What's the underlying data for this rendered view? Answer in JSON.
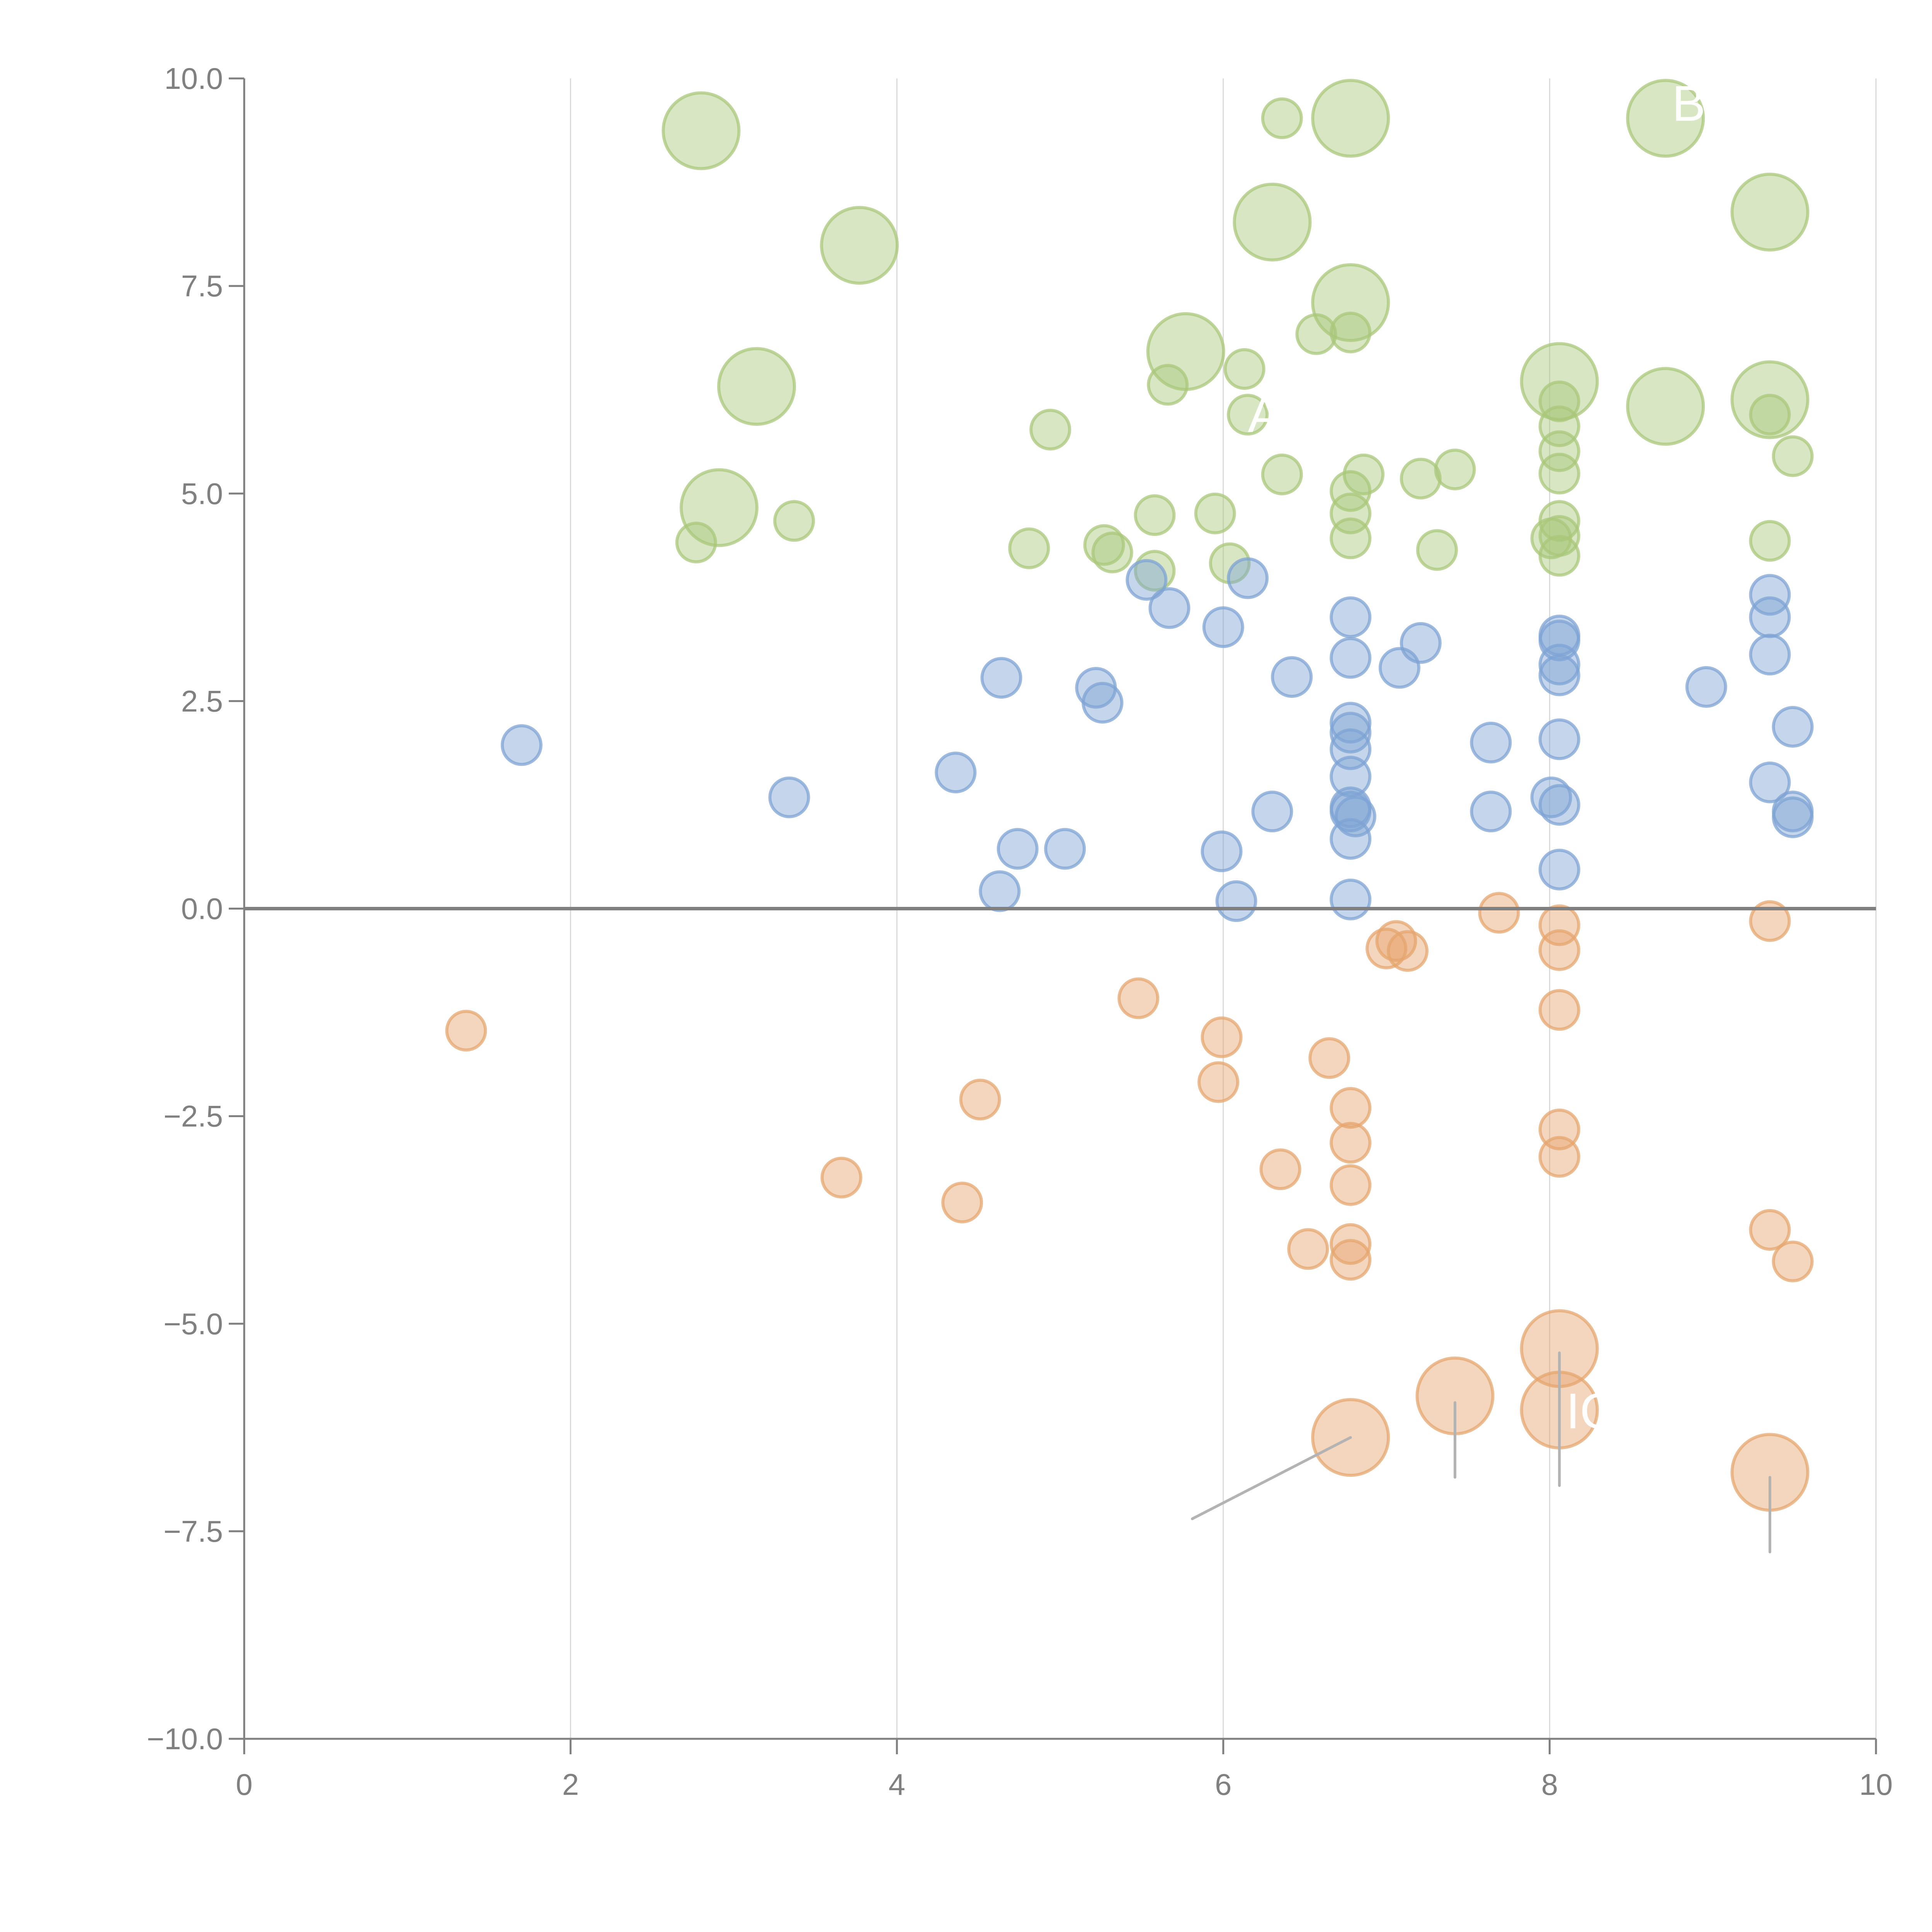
{
  "chart_data": {
    "type": "scatter",
    "subtype": "bubble",
    "title": "",
    "xlabel": "",
    "ylabel": "",
    "xlim": [
      0,
      10
    ],
    "ylim": [
      -10,
      10
    ],
    "x_ticks": [
      "0",
      "2",
      "4",
      "6",
      "8",
      "10"
    ],
    "x_tick_values": [
      0,
      2,
      4,
      6,
      8,
      10
    ],
    "y_ticks": [
      "10.0",
      "7.5",
      "5.0",
      "2.5",
      "0.0",
      "−2.5",
      "−5.0",
      "−7.5",
      "−10.0"
    ],
    "y_tick_values": [
      10,
      7.5,
      5,
      2.5,
      0,
      -2.5,
      -5,
      -7.5,
      -10
    ],
    "grid": "vertical",
    "reference_line_y": 0,
    "legend": "none",
    "series": [
      {
        "name": "green",
        "color": "#a9c77a",
        "points": [
          {
            "x": 2.8,
            "y": 9.37,
            "size": "large"
          },
          {
            "x": 3.77,
            "y": 7.99,
            "size": "large"
          },
          {
            "x": 3.14,
            "y": 6.29,
            "size": "large"
          },
          {
            "x": 2.91,
            "y": 4.83,
            "size": "large"
          },
          {
            "x": 6.3,
            "y": 8.27,
            "size": "large"
          },
          {
            "x": 6.78,
            "y": 9.52,
            "size": "large"
          },
          {
            "x": 6.78,
            "y": 7.3,
            "size": "large"
          },
          {
            "x": 5.77,
            "y": 6.71,
            "size": "large"
          },
          {
            "x": 8.06,
            "y": 6.35,
            "size": "large"
          },
          {
            "x": 8.71,
            "y": 6.05,
            "size": "large"
          },
          {
            "x": 8.71,
            "y": 9.52,
            "size": "large"
          },
          {
            "x": 9.35,
            "y": 8.39,
            "size": "large"
          },
          {
            "x": 9.35,
            "y": 6.13,
            "size": "large"
          },
          {
            "x": 6.36,
            "y": 9.52,
            "size": "small"
          },
          {
            "x": 6.57,
            "y": 6.92,
            "size": "small"
          },
          {
            "x": 6.78,
            "y": 6.94,
            "size": "small"
          },
          {
            "x": 6.13,
            "y": 6.5,
            "size": "small"
          },
          {
            "x": 5.66,
            "y": 6.31,
            "size": "small"
          },
          {
            "x": 6.15,
            "y": 5.95,
            "size": "small"
          },
          {
            "x": 4.94,
            "y": 5.77,
            "size": "small"
          },
          {
            "x": 8.06,
            "y": 6.11,
            "size": "small"
          },
          {
            "x": 8.06,
            "y": 5.81,
            "size": "small"
          },
          {
            "x": 8.06,
            "y": 5.51,
            "size": "small"
          },
          {
            "x": 8.06,
            "y": 5.24,
            "size": "small"
          },
          {
            "x": 9.35,
            "y": 5.95,
            "size": "small"
          },
          {
            "x": 9.49,
            "y": 5.45,
            "size": "small"
          },
          {
            "x": 6.36,
            "y": 5.23,
            "size": "small"
          },
          {
            "x": 6.86,
            "y": 5.23,
            "size": "small"
          },
          {
            "x": 6.78,
            "y": 5.03,
            "size": "small"
          },
          {
            "x": 7.21,
            "y": 5.18,
            "size": "small"
          },
          {
            "x": 7.42,
            "y": 5.29,
            "size": "small"
          },
          {
            "x": 3.37,
            "y": 4.67,
            "size": "small"
          },
          {
            "x": 2.77,
            "y": 4.41,
            "size": "small"
          },
          {
            "x": 5.58,
            "y": 4.74,
            "size": "small"
          },
          {
            "x": 5.95,
            "y": 4.76,
            "size": "small"
          },
          {
            "x": 6.78,
            "y": 4.76,
            "size": "small"
          },
          {
            "x": 8.06,
            "y": 4.67,
            "size": "small"
          },
          {
            "x": 8.06,
            "y": 4.49,
            "size": "small"
          },
          {
            "x": 8.01,
            "y": 4.46,
            "size": "small"
          },
          {
            "x": 6.78,
            "y": 4.46,
            "size": "small"
          },
          {
            "x": 9.35,
            "y": 4.43,
            "size": "small"
          },
          {
            "x": 4.81,
            "y": 4.34,
            "size": "small"
          },
          {
            "x": 5.27,
            "y": 4.38,
            "size": "small"
          },
          {
            "x": 5.32,
            "y": 4.29,
            "size": "small"
          },
          {
            "x": 7.31,
            "y": 4.32,
            "size": "small"
          },
          {
            "x": 8.06,
            "y": 4.25,
            "size": "small"
          },
          {
            "x": 5.58,
            "y": 4.07,
            "size": "small"
          },
          {
            "x": 6.04,
            "y": 4.16,
            "size": "small"
          }
        ]
      },
      {
        "name": "blue",
        "color": "#7ea3d4",
        "points": [
          {
            "x": 1.7,
            "y": 1.97,
            "size": "small"
          },
          {
            "x": 3.34,
            "y": 1.34,
            "size": "small"
          },
          {
            "x": 4.36,
            "y": 1.64,
            "size": "small"
          },
          {
            "x": 4.64,
            "y": 2.78,
            "size": "small"
          },
          {
            "x": 4.74,
            "y": 0.72,
            "size": "small"
          },
          {
            "x": 5.03,
            "y": 0.72,
            "size": "small"
          },
          {
            "x": 4.63,
            "y": 0.21,
            "size": "small"
          },
          {
            "x": 5.22,
            "y": 2.66,
            "size": "small"
          },
          {
            "x": 5.26,
            "y": 2.48,
            "size": "small"
          },
          {
            "x": 5.53,
            "y": 3.96,
            "size": "small"
          },
          {
            "x": 5.67,
            "y": 3.62,
            "size": "small"
          },
          {
            "x": 6.0,
            "y": 3.39,
            "size": "small"
          },
          {
            "x": 6.15,
            "y": 3.98,
            "size": "small"
          },
          {
            "x": 6.42,
            "y": 2.79,
            "size": "small"
          },
          {
            "x": 5.99,
            "y": 0.69,
            "size": "small"
          },
          {
            "x": 6.08,
            "y": 0.09,
            "size": "small"
          },
          {
            "x": 6.3,
            "y": 1.17,
            "size": "small"
          },
          {
            "x": 6.78,
            "y": 3.51,
            "size": "small"
          },
          {
            "x": 6.78,
            "y": 3.02,
            "size": "small"
          },
          {
            "x": 6.78,
            "y": 2.24,
            "size": "small"
          },
          {
            "x": 6.78,
            "y": 2.12,
            "size": "small"
          },
          {
            "x": 6.78,
            "y": 1.92,
            "size": "small"
          },
          {
            "x": 6.78,
            "y": 1.59,
            "size": "small"
          },
          {
            "x": 6.78,
            "y": 1.22,
            "size": "small"
          },
          {
            "x": 6.78,
            "y": 1.17,
            "size": "small"
          },
          {
            "x": 6.81,
            "y": 1.11,
            "size": "small"
          },
          {
            "x": 6.78,
            "y": 0.84,
            "size": "small"
          },
          {
            "x": 6.78,
            "y": 0.11,
            "size": "small"
          },
          {
            "x": 7.08,
            "y": 2.9,
            "size": "small"
          },
          {
            "x": 7.21,
            "y": 3.2,
            "size": "small"
          },
          {
            "x": 7.64,
            "y": 2.0,
            "size": "small"
          },
          {
            "x": 7.64,
            "y": 1.17,
            "size": "small"
          },
          {
            "x": 8.06,
            "y": 3.29,
            "size": "small"
          },
          {
            "x": 8.06,
            "y": 3.23,
            "size": "small"
          },
          {
            "x": 8.06,
            "y": 2.94,
            "size": "small"
          },
          {
            "x": 8.06,
            "y": 2.81,
            "size": "small"
          },
          {
            "x": 8.06,
            "y": 2.04,
            "size": "small"
          },
          {
            "x": 8.01,
            "y": 1.34,
            "size": "small"
          },
          {
            "x": 8.06,
            "y": 1.25,
            "size": "small"
          },
          {
            "x": 8.06,
            "y": 0.47,
            "size": "small"
          },
          {
            "x": 8.96,
            "y": 2.67,
            "size": "small"
          },
          {
            "x": 9.35,
            "y": 3.78,
            "size": "small"
          },
          {
            "x": 9.35,
            "y": 3.51,
            "size": "small"
          },
          {
            "x": 9.35,
            "y": 3.06,
            "size": "small"
          },
          {
            "x": 9.49,
            "y": 2.19,
            "size": "small"
          },
          {
            "x": 9.35,
            "y": 1.52,
            "size": "small"
          },
          {
            "x": 9.49,
            "y": 1.17,
            "size": "small"
          },
          {
            "x": 9.49,
            "y": 1.1,
            "size": "small"
          }
        ]
      },
      {
        "name": "orange",
        "color": "#e6a56e",
        "points": [
          {
            "x": 1.36,
            "y": -1.47,
            "size": "small"
          },
          {
            "x": 3.66,
            "y": -3.24,
            "size": "small"
          },
          {
            "x": 4.4,
            "y": -3.54,
            "size": "small"
          },
          {
            "x": 4.51,
            "y": -2.3,
            "size": "small"
          },
          {
            "x": 5.48,
            "y": -1.08,
            "size": "small"
          },
          {
            "x": 5.99,
            "y": -1.55,
            "size": "small"
          },
          {
            "x": 5.97,
            "y": -2.09,
            "size": "small"
          },
          {
            "x": 6.35,
            "y": -3.14,
            "size": "small"
          },
          {
            "x": 6.52,
            "y": -4.1,
            "size": "small"
          },
          {
            "x": 6.65,
            "y": -1.8,
            "size": "small"
          },
          {
            "x": 6.78,
            "y": -2.4,
            "size": "small"
          },
          {
            "x": 6.78,
            "y": -2.82,
            "size": "small"
          },
          {
            "x": 6.78,
            "y": -3.33,
            "size": "small"
          },
          {
            "x": 6.78,
            "y": -4.04,
            "size": "small"
          },
          {
            "x": 6.78,
            "y": -4.23,
            "size": "small"
          },
          {
            "x": 7.0,
            "y": -0.48,
            "size": "small"
          },
          {
            "x": 7.06,
            "y": -0.39,
            "size": "small"
          },
          {
            "x": 7.13,
            "y": -0.51,
            "size": "small"
          },
          {
            "x": 7.69,
            "y": -0.05,
            "size": "small"
          },
          {
            "x": 8.06,
            "y": -0.2,
            "size": "small"
          },
          {
            "x": 8.06,
            "y": -0.5,
            "size": "small"
          },
          {
            "x": 8.06,
            "y": -1.22,
            "size": "small"
          },
          {
            "x": 8.06,
            "y": -2.66,
            "size": "small"
          },
          {
            "x": 8.06,
            "y": -2.99,
            "size": "small"
          },
          {
            "x": 9.35,
            "y": -0.15,
            "size": "small"
          },
          {
            "x": 9.35,
            "y": -3.87,
            "size": "small"
          },
          {
            "x": 9.49,
            "y": -4.25,
            "size": "small"
          },
          {
            "x": 6.78,
            "y": -6.37,
            "size": "large"
          },
          {
            "x": 7.42,
            "y": -5.87,
            "size": "large"
          },
          {
            "x": 8.06,
            "y": -5.3,
            "size": "large"
          },
          {
            "x": 8.06,
            "y": -6.04,
            "size": "large"
          },
          {
            "x": 9.35,
            "y": -6.79,
            "size": "large"
          }
        ]
      }
    ],
    "annotations": [
      {
        "text": "BE",
        "x": 8.75,
        "y": 9.7,
        "color": "#ffffff"
      },
      {
        "text": "A",
        "x": 6.15,
        "y": 5.95,
        "color": "#ffffff"
      },
      {
        "text": "IQ",
        "x": 8.1,
        "y": -6.05,
        "color": "#ffffff"
      }
    ],
    "leader_lines": [
      {
        "from": {
          "x": 6.78,
          "y": -6.37
        },
        "to": {
          "x": 5.81,
          "y": -7.35
        },
        "color": "#b3b3b3"
      },
      {
        "from": {
          "x": 7.42,
          "y": -5.95
        },
        "to": {
          "x": 7.42,
          "y": -6.85
        },
        "color": "#b3b3b3"
      },
      {
        "from": {
          "x": 8.06,
          "y": -5.35
        },
        "to": {
          "x": 8.06,
          "y": -6.95
        },
        "color": "#b3b3b3"
      },
      {
        "from": {
          "x": 9.35,
          "y": -6.85
        },
        "to": {
          "x": 9.35,
          "y": -7.75
        },
        "color": "#b3b3b3"
      }
    ]
  }
}
